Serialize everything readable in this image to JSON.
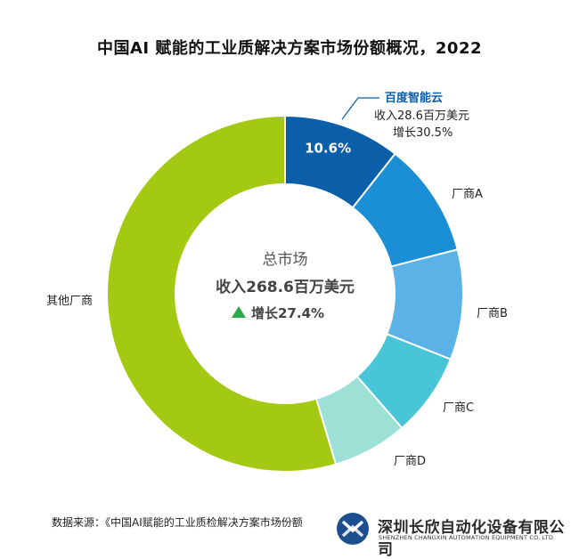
{
  "title": "中国AI 赋能的工业质解决方案市场份额概况，2022",
  "chart_data": {
    "type": "pie",
    "style": "donut",
    "title": "中国AI 赋能的工业质解决方案市场份额概况，2022",
    "slices": [
      {
        "label": "百度智能云",
        "value": 10.6,
        "value_label": "10.6%",
        "color": "#0b5ea8",
        "annotation": [
          "收入28.6百万美元",
          "增长30.5%"
        ],
        "label_color": "#0b5ea8"
      },
      {
        "label": "厂商A",
        "value": 10.4,
        "color": "#1a8fd6"
      },
      {
        "label": "厂商B",
        "value": 10.0,
        "color": "#5bb2e6"
      },
      {
        "label": "厂商C",
        "value": 7.6,
        "color": "#49c5d8"
      },
      {
        "label": "厂商D",
        "value": 6.8,
        "color": "#9de0d6"
      },
      {
        "label": "其他厂商",
        "value": 54.6,
        "color": "#a4c912"
      }
    ],
    "center": {
      "title": "总市场",
      "revenue": "收入268.6百万美元",
      "growth": "增长27.4%",
      "growth_icon": "triangle-up-icon",
      "growth_icon_color": "#2aa84a"
    }
  },
  "source": "数据来源：《中国AI赋能的工业质检解决方案市场份额",
  "watermark": {
    "company": "深圳长欣自动化设备有限公司",
    "company_en": "SHENZHEN CHANGXIN AUTOMATION EQUIPMENT CO. LTD",
    "logo_icon": "changxin-logo-icon"
  }
}
